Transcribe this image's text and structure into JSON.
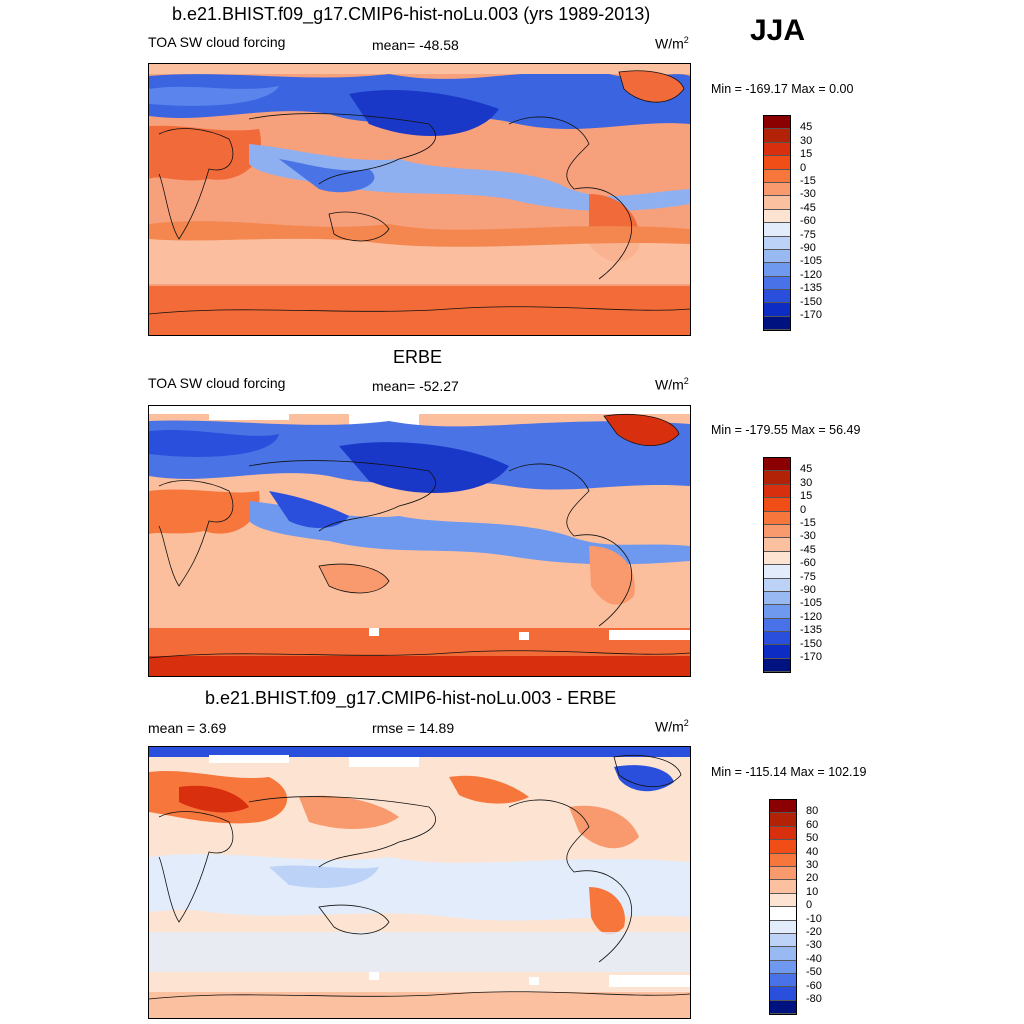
{
  "season_label": "JJA",
  "panels": [
    {
      "title": "b.e21.BHIST.f09_g17.CMIP6-hist-noLu.003 (yrs 1989-2013)",
      "left_label": "TOA SW cloud forcing",
      "center_label": "mean= -48.58",
      "unit_text": "W/m",
      "unit_sup": "2",
      "range_text": "Min = -169.17 Max =    0.00",
      "colorbar": {
        "levels": [
          "45",
          "30",
          "15",
          "0",
          "-15",
          "-30",
          "-45",
          "-60",
          "-75",
          "-90",
          "-105",
          "-120",
          "-135",
          "-150",
          "-170"
        ],
        "colors": [
          "#8b0000",
          "#b22206",
          "#d8300e",
          "#f04e16",
          "#f6763b",
          "#f89a6e",
          "#fbc0a0",
          "#fde4d2",
          "#e3ecfb",
          "#bcd3f7",
          "#98b9f2",
          "#6f98ef",
          "#4972e8",
          "#2a4fdd",
          "#0c2cc4",
          "#00127f"
        ]
      }
    },
    {
      "title": "ERBE",
      "left_label": "TOA SW cloud forcing",
      "center_label": "mean= -52.27",
      "unit_text": "W/m",
      "unit_sup": "2",
      "range_text": "Min = -179.55 Max =  56.49",
      "colorbar": {
        "levels": [
          "45",
          "30",
          "15",
          "0",
          "-15",
          "-30",
          "-45",
          "-60",
          "-75",
          "-90",
          "-105",
          "-120",
          "-135",
          "-150",
          "-170"
        ],
        "colors": [
          "#8b0000",
          "#b22206",
          "#d8300e",
          "#f04e16",
          "#f6763b",
          "#f89a6e",
          "#fbc0a0",
          "#fde4d2",
          "#e3ecfb",
          "#bcd3f7",
          "#98b9f2",
          "#6f98ef",
          "#4972e8",
          "#2a4fdd",
          "#0c2cc4",
          "#00127f"
        ]
      }
    },
    {
      "title": "b.e21.BHIST.f09_g17.CMIP6-hist-noLu.003 - ERBE",
      "left_label": "mean =   3.69",
      "center_label": "rmse =  14.89",
      "unit_text": "W/m",
      "unit_sup": "2",
      "range_text": "Min = -115.14 Max = 102.19",
      "colorbar": {
        "levels": [
          "80",
          "60",
          "50",
          "40",
          "30",
          "20",
          "10",
          "0",
          "-10",
          "-20",
          "-30",
          "-40",
          "-50",
          "-60",
          "-80"
        ],
        "colors": [
          "#8b0000",
          "#b22206",
          "#d8300e",
          "#f04e16",
          "#f6763b",
          "#f89a6e",
          "#fbc0a0",
          "#fde4d2",
          "#ffffff",
          "#e3ecfb",
          "#bcd3f7",
          "#98b9f2",
          "#6f98ef",
          "#4972e8",
          "#2a4fdd",
          "#00127f"
        ]
      }
    }
  ]
}
